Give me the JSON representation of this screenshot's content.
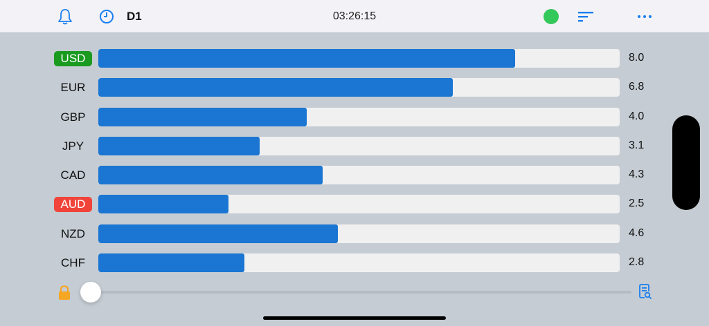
{
  "header": {
    "timeframe": "D1",
    "clock": "03:26:15",
    "icons": [
      "bell-icon",
      "clock-icon",
      "status-dot",
      "sort-icon",
      "more-icon"
    ],
    "status_color": "#34c759"
  },
  "rows": [
    {
      "label": "USD",
      "value": "8.0",
      "pct": "80%",
      "badge": "#1a9a1f"
    },
    {
      "label": "EUR",
      "value": "6.8",
      "pct": "68%",
      "badge": ""
    },
    {
      "label": "GBP",
      "value": "4.0",
      "pct": "40%",
      "badge": ""
    },
    {
      "label": "JPY",
      "value": "3.1",
      "pct": "31%",
      "badge": ""
    },
    {
      "label": "CAD",
      "value": "4.3",
      "pct": "43%",
      "badge": ""
    },
    {
      "label": "AUD",
      "value": "2.5",
      "pct": "25%",
      "badge": "#f0443a"
    },
    {
      "label": "NZD",
      "value": "4.6",
      "pct": "46%",
      "badge": ""
    },
    {
      "label": "CHF",
      "value": "2.8",
      "pct": "28%",
      "badge": ""
    }
  ],
  "footer": {
    "lock_icon": "lock-icon",
    "report_icon": "document-search-icon",
    "slider_value": 0
  },
  "chart_data": {
    "type": "bar",
    "orientation": "horizontal",
    "title": "",
    "categories": [
      "USD",
      "EUR",
      "GBP",
      "JPY",
      "CAD",
      "AUD",
      "NZD",
      "CHF"
    ],
    "values": [
      8.0,
      6.8,
      4.0,
      3.1,
      4.3,
      2.5,
      4.6,
      2.8
    ],
    "xlim": [
      0,
      10
    ],
    "highlight": {
      "strongest": "USD",
      "weakest": "AUD"
    },
    "bar_color": "#1a76d2",
    "grid": false,
    "legend": "none"
  }
}
